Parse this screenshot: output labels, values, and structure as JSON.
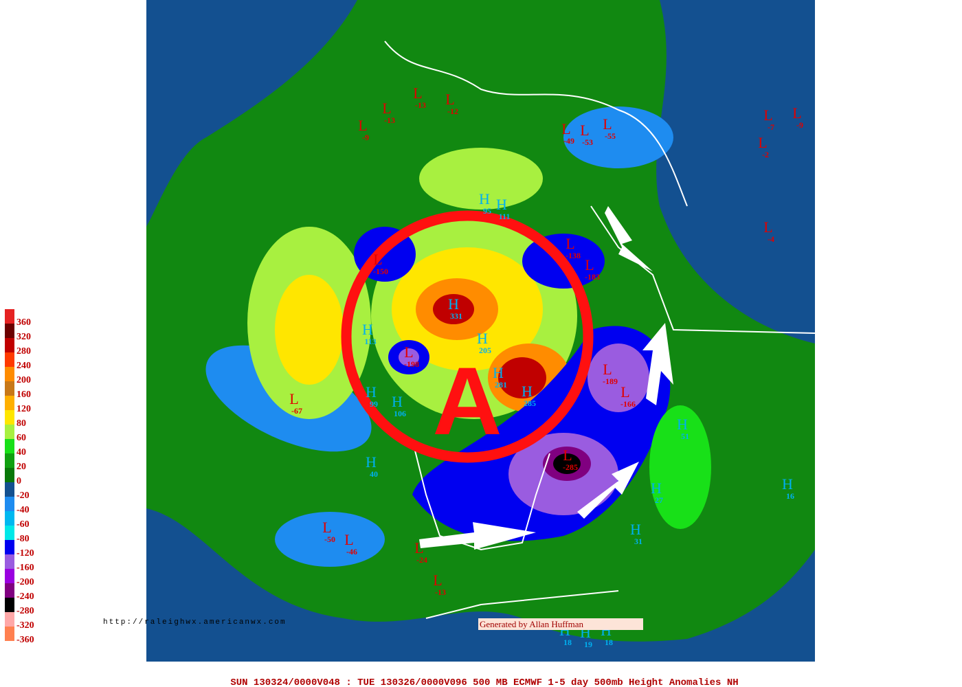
{
  "footer": "SUN 130324/0000V048 : TUE 130326/0000V096  500 MB ECMWF 1-5 day 500mb Height Anomalies NH",
  "url": "http://raleighwx.americanwx.com",
  "credit": "Generated by Allan Huffman",
  "annotation": "A",
  "legend": [
    {
      "label": "360",
      "color": "#e52222"
    },
    {
      "label": "320",
      "color": "#6b0000"
    },
    {
      "label": "280",
      "color": "#c00000"
    },
    {
      "label": "240",
      "color": "#ff3a00"
    },
    {
      "label": "200",
      "color": "#ff8c00"
    },
    {
      "label": "160",
      "color": "#c87818"
    },
    {
      "label": "120",
      "color": "#ffb000"
    },
    {
      "label": "80",
      "color": "#ffe600"
    },
    {
      "label": "60",
      "color": "#a8f040"
    },
    {
      "label": "40",
      "color": "#18e018"
    },
    {
      "label": "20",
      "color": "#10a010"
    },
    {
      "label": "0",
      "color": "#087808"
    },
    {
      "label": "-20",
      "color": "#135090"
    },
    {
      "label": "-40",
      "color": "#1e8cf0"
    },
    {
      "label": "-60",
      "color": "#00b8f0"
    },
    {
      "label": "-80",
      "color": "#00e8e8"
    },
    {
      "label": "-120",
      "color": "#0000f0"
    },
    {
      "label": "-160",
      "color": "#9a5ce0"
    },
    {
      "label": "-200",
      "color": "#9a00e0"
    },
    {
      "label": "-240",
      "color": "#800080"
    },
    {
      "label": "-280",
      "color": "#000000"
    },
    {
      "label": "-320",
      "color": "#ffa8a8"
    },
    {
      "label": "-360",
      "color": "#ff8050"
    }
  ],
  "centers": [
    {
      "symbol": "L",
      "value": -13
    },
    {
      "symbol": "L",
      "value": -13
    },
    {
      "symbol": "L",
      "value": -9
    },
    {
      "symbol": "L",
      "value": -12
    },
    {
      "symbol": "L",
      "value": -49
    },
    {
      "symbol": "L",
      "value": -53
    },
    {
      "symbol": "L",
      "value": -55
    },
    {
      "symbol": "L",
      "value": -7
    },
    {
      "symbol": "L",
      "value": -9
    },
    {
      "symbol": "L",
      "value": -2
    },
    {
      "symbol": "L",
      "value": -4
    },
    {
      "symbol": "H",
      "value": 95
    },
    {
      "symbol": "H",
      "value": 111
    },
    {
      "symbol": "L",
      "value": -138
    },
    {
      "symbol": "L",
      "value": -183
    },
    {
      "symbol": "L",
      "value": -150
    },
    {
      "symbol": "H",
      "value": 331
    },
    {
      "symbol": "H",
      "value": 113
    },
    {
      "symbol": "L",
      "value": -198
    },
    {
      "symbol": "H",
      "value": 205
    },
    {
      "symbol": "H",
      "value": 281
    },
    {
      "symbol": "H",
      "value": 285
    },
    {
      "symbol": "L",
      "value": -189
    },
    {
      "symbol": "L",
      "value": -166
    },
    {
      "symbol": "L",
      "value": -67
    },
    {
      "symbol": "H",
      "value": 99
    },
    {
      "symbol": "H",
      "value": 106
    },
    {
      "symbol": "L",
      "value": -285
    },
    {
      "symbol": "H",
      "value": 40
    },
    {
      "symbol": "H",
      "value": 51
    },
    {
      "symbol": "H",
      "value": 27
    },
    {
      "symbol": "H",
      "value": 16
    },
    {
      "symbol": "H",
      "value": 31
    },
    {
      "symbol": "L",
      "value": -50
    },
    {
      "symbol": "L",
      "value": -46
    },
    {
      "symbol": "L",
      "value": -24
    },
    {
      "symbol": "L",
      "value": -13
    },
    {
      "symbol": "H",
      "value": 18
    },
    {
      "symbol": "H",
      "value": 19
    },
    {
      "symbol": "H",
      "value": 18
    }
  ]
}
